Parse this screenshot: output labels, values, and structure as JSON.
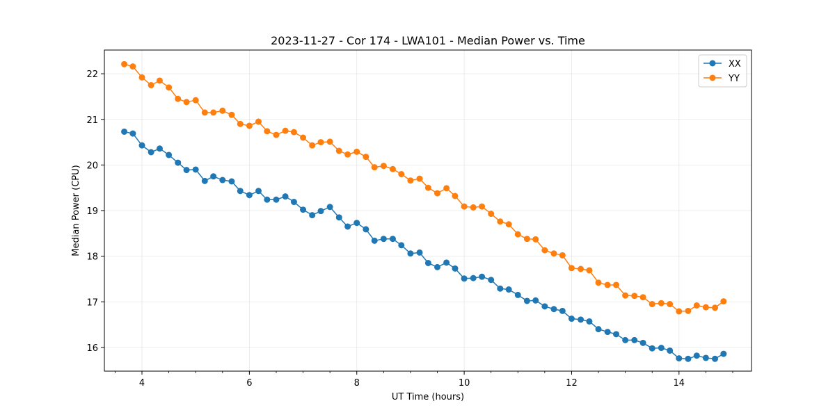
{
  "chart_data": {
    "type": "line",
    "title": "2023-11-27 - Cor 174 - LWA101 - Median Power vs. Time",
    "xlabel": "UT Time (hours)",
    "ylabel": "Median Power (CPU)",
    "xlim": [
      3.3,
      15.35
    ],
    "ylim": [
      15.48,
      22.52
    ],
    "xticks": [
      4,
      6,
      8,
      10,
      12,
      14
    ],
    "xtick_labels": [
      "4",
      "6",
      "8",
      "10",
      "12",
      "14"
    ],
    "yticks": [
      16,
      17,
      18,
      19,
      20,
      21,
      22
    ],
    "ytick_labels": [
      "16",
      "17",
      "18",
      "19",
      "20",
      "21",
      "22"
    ],
    "grid": true,
    "legend_position": "top-right",
    "x": [
      3.67,
      3.83,
      4.0,
      4.17,
      4.33,
      4.5,
      4.67,
      4.83,
      5.0,
      5.17,
      5.33,
      5.5,
      5.67,
      5.83,
      6.0,
      6.17,
      6.33,
      6.5,
      6.67,
      6.83,
      7.0,
      7.17,
      7.33,
      7.5,
      7.67,
      7.83,
      8.0,
      8.17,
      8.33,
      8.5,
      8.67,
      8.83,
      9.0,
      9.17,
      9.33,
      9.5,
      9.67,
      9.83,
      10.0,
      10.17,
      10.33,
      10.5,
      10.67,
      10.83,
      11.0,
      11.17,
      11.33,
      11.5,
      11.67,
      11.83,
      12.0,
      12.17,
      12.33,
      12.5,
      12.67,
      12.83,
      13.0,
      13.17,
      13.33,
      13.5,
      13.67,
      13.83,
      14.0,
      14.17,
      14.33,
      14.5,
      14.67,
      14.83
    ],
    "series": [
      {
        "name": "XX",
        "color": "#1f77b4",
        "values": [
          20.73,
          20.69,
          20.43,
          20.28,
          20.36,
          20.22,
          20.05,
          19.89,
          19.9,
          19.65,
          19.75,
          19.67,
          19.64,
          19.43,
          19.34,
          19.43,
          19.24,
          19.24,
          19.31,
          19.19,
          19.02,
          18.9,
          18.99,
          19.08,
          18.85,
          18.65,
          18.73,
          18.59,
          18.34,
          18.38,
          18.38,
          18.24,
          18.06,
          18.08,
          17.85,
          17.76,
          17.86,
          17.73,
          17.51,
          17.52,
          17.55,
          17.48,
          17.29,
          17.27,
          17.15,
          17.02,
          17.03,
          16.9,
          16.84,
          16.8,
          16.63,
          16.61,
          16.57,
          16.4,
          16.34,
          16.29,
          16.16,
          16.16,
          16.1,
          15.98,
          15.99,
          15.93,
          15.76,
          15.75,
          15.82,
          15.77,
          15.75,
          15.86
        ]
      },
      {
        "name": "YY",
        "color": "#ff7f0e",
        "values": [
          22.21,
          22.16,
          21.92,
          21.75,
          21.85,
          21.7,
          21.45,
          21.38,
          21.42,
          21.15,
          21.15,
          21.19,
          21.1,
          20.9,
          20.86,
          20.95,
          20.74,
          20.66,
          20.75,
          20.72,
          20.6,
          20.43,
          20.5,
          20.51,
          20.31,
          20.23,
          20.29,
          20.18,
          19.95,
          19.98,
          19.91,
          19.8,
          19.66,
          19.7,
          19.5,
          19.38,
          19.49,
          19.32,
          19.09,
          19.07,
          19.09,
          18.93,
          18.76,
          18.7,
          18.48,
          18.38,
          18.37,
          18.13,
          18.06,
          18.02,
          17.74,
          17.72,
          17.69,
          17.42,
          17.37,
          17.37,
          17.14,
          17.13,
          17.1,
          16.95,
          16.97,
          16.95,
          16.79,
          16.8,
          16.92,
          16.88,
          16.87,
          17.01
        ]
      }
    ]
  }
}
